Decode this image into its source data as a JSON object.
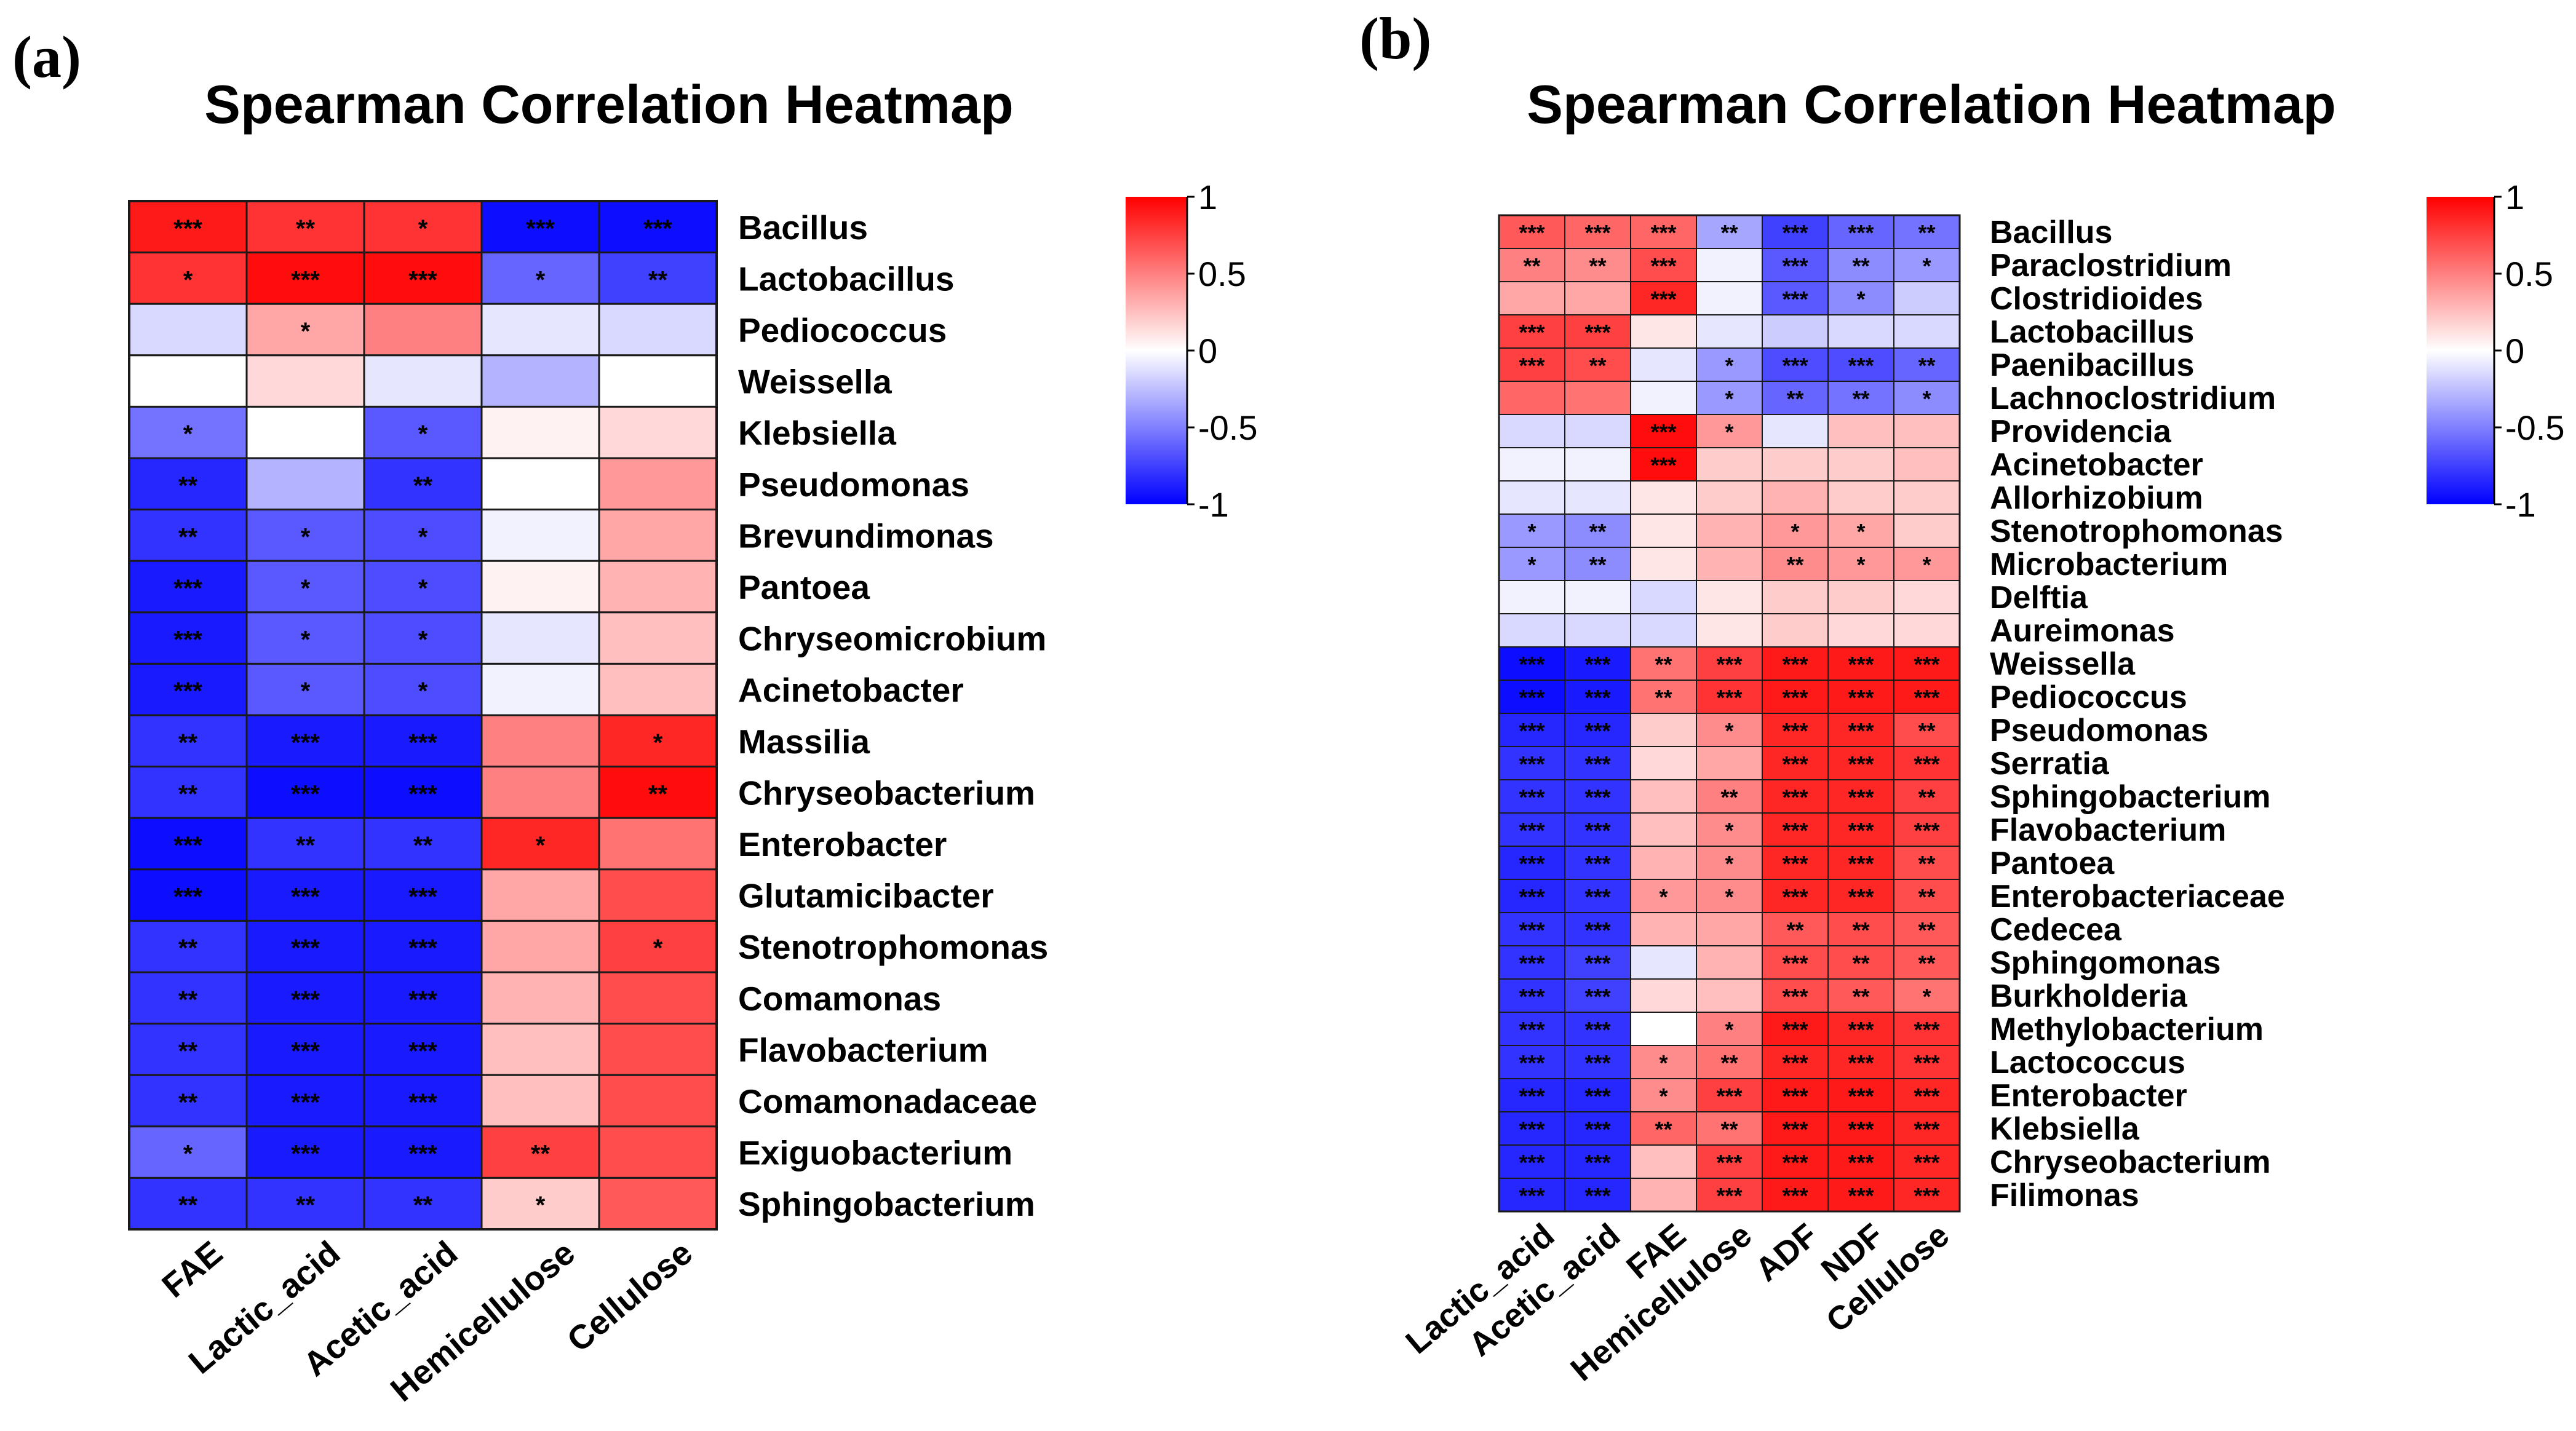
{
  "figure": {
    "panel_a_label": "(a)",
    "panel_b_label": "(b)"
  },
  "colors": {
    "low": "#0000ff",
    "mid": "#ffffff",
    "high": "#ff0000",
    "grid": "#1a1a1a"
  },
  "chart_data": [
    {
      "type": "heatmap",
      "title": "Spearman Correlation Heatmap",
      "columns": [
        "FAE",
        "Lactic_acid",
        "Acetic_acid",
        "Hemicellulose",
        "Cellulose"
      ],
      "rows": [
        "Bacillus",
        "Lactobacillus",
        "Pediococcus",
        "Weissella",
        "Klebsiella",
        "Pseudomonas",
        "Brevundimonas",
        "Pantoea",
        "Chryseomicrobium",
        "Acinetobacter",
        "Massilia",
        "Chryseobacterium",
        "Enterobacter",
        "Glutamicibacter",
        "Stenotrophomonas",
        "Comamonas",
        "Flavobacterium",
        "Comamonadaceae",
        "Exiguobacterium",
        "Sphingobacterium"
      ],
      "values": [
        [
          0.9,
          0.8,
          0.8,
          -0.95,
          -0.95
        ],
        [
          0.8,
          0.95,
          0.95,
          -0.6,
          -0.75
        ],
        [
          -0.15,
          0.35,
          0.5,
          -0.1,
          -0.15
        ],
        [
          0.0,
          0.15,
          -0.1,
          -0.3,
          0.0
        ],
        [
          -0.55,
          0.0,
          -0.65,
          0.05,
          0.15
        ],
        [
          -0.85,
          -0.3,
          -0.8,
          0.0,
          0.4
        ],
        [
          -0.8,
          -0.65,
          -0.7,
          -0.05,
          0.35
        ],
        [
          -0.9,
          -0.65,
          -0.7,
          0.05,
          0.3
        ],
        [
          -0.9,
          -0.65,
          -0.7,
          -0.1,
          0.25
        ],
        [
          -0.9,
          -0.65,
          -0.7,
          -0.05,
          0.25
        ],
        [
          -0.8,
          -0.9,
          -0.9,
          0.5,
          0.85
        ],
        [
          -0.8,
          -0.95,
          -0.95,
          0.5,
          0.95
        ],
        [
          -0.95,
          -0.8,
          -0.8,
          0.85,
          0.55
        ],
        [
          -0.95,
          -0.9,
          -0.9,
          0.35,
          0.7
        ],
        [
          -0.8,
          -0.9,
          -0.9,
          0.35,
          0.75
        ],
        [
          -0.8,
          -0.9,
          -0.9,
          0.3,
          0.7
        ],
        [
          -0.8,
          -0.9,
          -0.9,
          0.25,
          0.7
        ],
        [
          -0.8,
          -0.9,
          -0.9,
          0.25,
          0.7
        ],
        [
          -0.6,
          -0.9,
          -0.9,
          0.75,
          0.7
        ],
        [
          -0.8,
          -0.8,
          -0.8,
          0.2,
          0.65
        ]
      ],
      "significance": [
        [
          "***",
          "**",
          "*",
          "***",
          "***"
        ],
        [
          "*",
          "***",
          "***",
          "*",
          "**"
        ],
        [
          "",
          "*",
          "",
          "",
          ""
        ],
        [
          "",
          "",
          "",
          "",
          ""
        ],
        [
          "*",
          "",
          "*",
          "",
          ""
        ],
        [
          "**",
          "",
          "**",
          "",
          ""
        ],
        [
          "**",
          "*",
          "*",
          "",
          ""
        ],
        [
          "***",
          "*",
          "*",
          "",
          ""
        ],
        [
          "***",
          "*",
          "*",
          "",
          ""
        ],
        [
          "***",
          "*",
          "*",
          "",
          ""
        ],
        [
          "**",
          "***",
          "***",
          "",
          "*"
        ],
        [
          "**",
          "***",
          "***",
          "",
          "**"
        ],
        [
          "***",
          "**",
          "**",
          "*",
          ""
        ],
        [
          "***",
          "***",
          "***",
          "",
          ""
        ],
        [
          "**",
          "***",
          "***",
          "",
          "*"
        ],
        [
          "**",
          "***",
          "***",
          "",
          ""
        ],
        [
          "**",
          "***",
          "***",
          "",
          ""
        ],
        [
          "**",
          "***",
          "***",
          "",
          ""
        ],
        [
          "*",
          "***",
          "***",
          "**",
          ""
        ],
        [
          "**",
          "**",
          "**",
          "*",
          ""
        ]
      ],
      "colorbar": {
        "range": [
          -1,
          1
        ],
        "ticks": [
          "1",
          "0.5",
          "0",
          "-0.5",
          "-1"
        ]
      }
    },
    {
      "type": "heatmap",
      "title": "Spearman Correlation Heatmap",
      "columns": [
        "Lactic_acid",
        "Acetic_acid",
        "FAE",
        "Hemicellulose",
        "ADF",
        "NDF",
        "Cellulose"
      ],
      "rows": [
        "Bacillus",
        "Paraclostridium",
        "Clostridioides",
        "Lactobacillus",
        "Paenibacillus",
        "Lachnoclostridium",
        "Providencia",
        "Acinetobacter",
        "Allorhizobium",
        "Stenotrophomonas",
        "Microbacterium",
        "Delftia",
        "Aureimonas",
        "Weissella",
        "Pediococcus",
        "Pseudomonas",
        "Serratia",
        "Sphingobacterium",
        "Flavobacterium",
        "Pantoea",
        "Enterobacteriaceae",
        "Cedecea",
        "Sphingomonas",
        "Burkholderia",
        "Methylobacterium",
        "Lactococcus",
        "Enterobacter",
        "Klebsiella",
        "Chryseobacterium",
        "Filimonas"
      ],
      "values": [
        [
          0.65,
          0.6,
          0.6,
          -0.35,
          -0.75,
          -0.6,
          -0.55
        ],
        [
          0.5,
          0.45,
          0.7,
          -0.05,
          -0.65,
          -0.45,
          -0.4
        ],
        [
          0.35,
          0.35,
          0.85,
          -0.05,
          -0.65,
          -0.45,
          -0.2
        ],
        [
          0.75,
          0.75,
          0.1,
          -0.1,
          -0.2,
          -0.15,
          -0.15
        ],
        [
          0.75,
          0.7,
          -0.1,
          -0.4,
          -0.7,
          -0.7,
          -0.6
        ],
        [
          0.6,
          0.55,
          -0.05,
          -0.4,
          -0.6,
          -0.55,
          -0.45
        ],
        [
          -0.15,
          -0.15,
          0.95,
          0.4,
          -0.1,
          0.25,
          0.25
        ],
        [
          -0.05,
          -0.05,
          0.95,
          0.2,
          0.2,
          0.2,
          0.25
        ],
        [
          -0.1,
          -0.1,
          0.1,
          0.2,
          0.3,
          0.2,
          0.2
        ],
        [
          -0.4,
          -0.45,
          0.1,
          0.3,
          0.4,
          0.35,
          0.2
        ],
        [
          -0.4,
          -0.45,
          0.1,
          0.3,
          0.45,
          0.4,
          0.4
        ],
        [
          -0.05,
          -0.05,
          -0.15,
          0.1,
          0.2,
          0.2,
          0.15
        ],
        [
          -0.15,
          -0.15,
          -0.15,
          0.1,
          0.2,
          0.15,
          0.15
        ],
        [
          -0.95,
          -0.9,
          0.55,
          0.75,
          0.9,
          0.9,
          0.9
        ],
        [
          -0.95,
          -0.9,
          0.55,
          0.8,
          0.9,
          0.9,
          0.9
        ],
        [
          -0.85,
          -0.85,
          0.2,
          0.45,
          0.85,
          0.85,
          0.7
        ],
        [
          -0.8,
          -0.8,
          0.15,
          0.35,
          0.85,
          0.85,
          0.8
        ],
        [
          -0.8,
          -0.8,
          0.25,
          0.5,
          0.85,
          0.85,
          0.75
        ],
        [
          -0.8,
          -0.8,
          0.25,
          0.45,
          0.85,
          0.85,
          0.75
        ],
        [
          -0.85,
          -0.8,
          0.3,
          0.45,
          0.85,
          0.85,
          0.7
        ],
        [
          -0.85,
          -0.8,
          0.4,
          0.45,
          0.85,
          0.85,
          0.7
        ],
        [
          -0.8,
          -0.8,
          0.3,
          0.35,
          0.65,
          0.7,
          0.65
        ],
        [
          -0.8,
          -0.75,
          -0.1,
          0.3,
          0.7,
          0.7,
          0.65
        ],
        [
          -0.8,
          -0.75,
          0.15,
          0.25,
          0.7,
          0.65,
          0.55
        ],
        [
          -0.8,
          -0.8,
          0.0,
          0.5,
          0.9,
          0.85,
          0.8
        ],
        [
          -0.8,
          -0.8,
          0.45,
          0.55,
          0.85,
          0.85,
          0.8
        ],
        [
          -0.85,
          -0.85,
          0.45,
          0.75,
          0.9,
          0.9,
          0.85
        ],
        [
          -0.85,
          -0.85,
          0.6,
          0.55,
          0.9,
          0.9,
          0.85
        ],
        [
          -0.85,
          -0.85,
          0.25,
          0.75,
          0.9,
          0.9,
          0.85
        ],
        [
          -0.85,
          -0.85,
          0.3,
          0.75,
          0.9,
          0.9,
          0.85
        ]
      ],
      "significance": [
        [
          "***",
          "***",
          "***",
          "**",
          "***",
          "***",
          "**"
        ],
        [
          "**",
          "**",
          "***",
          "",
          "***",
          "**",
          "*"
        ],
        [
          "",
          "",
          "***",
          "",
          "***",
          "*",
          ""
        ],
        [
          "***",
          "***",
          "",
          "",
          "",
          "",
          ""
        ],
        [
          "***",
          "**",
          "",
          "*",
          "***",
          "***",
          "**"
        ],
        [
          "",
          "",
          "",
          "*",
          "**",
          "**",
          "*"
        ],
        [
          "",
          "",
          "***",
          "*",
          "",
          "",
          ""
        ],
        [
          "",
          "",
          "***",
          "",
          "",
          "",
          ""
        ],
        [
          "",
          "",
          "",
          "",
          "",
          "",
          ""
        ],
        [
          "*",
          "**",
          "",
          "",
          "*",
          "*",
          ""
        ],
        [
          "*",
          "**",
          "",
          "",
          "**",
          "*",
          "*"
        ],
        [
          "",
          "",
          "",
          "",
          "",
          "",
          ""
        ],
        [
          "",
          "",
          "",
          "",
          "",
          "",
          ""
        ],
        [
          "***",
          "***",
          "**",
          "***",
          "***",
          "***",
          "***"
        ],
        [
          "***",
          "***",
          "**",
          "***",
          "***",
          "***",
          "***"
        ],
        [
          "***",
          "***",
          "",
          "*",
          "***",
          "***",
          "**"
        ],
        [
          "***",
          "***",
          "",
          "",
          "***",
          "***",
          "***"
        ],
        [
          "***",
          "***",
          "",
          "**",
          "***",
          "***",
          "**"
        ],
        [
          "***",
          "***",
          "",
          "*",
          "***",
          "***",
          "***"
        ],
        [
          "***",
          "***",
          "",
          "*",
          "***",
          "***",
          "**"
        ],
        [
          "***",
          "***",
          "*",
          "*",
          "***",
          "***",
          "**"
        ],
        [
          "***",
          "***",
          "",
          "",
          "**",
          "**",
          "**"
        ],
        [
          "***",
          "***",
          "",
          "",
          "***",
          "**",
          "**"
        ],
        [
          "***",
          "***",
          "",
          "",
          "***",
          "**",
          "*"
        ],
        [
          "***",
          "***",
          "",
          "*",
          "***",
          "***",
          "***"
        ],
        [
          "***",
          "***",
          "*",
          "**",
          "***",
          "***",
          "***"
        ],
        [
          "***",
          "***",
          "*",
          "***",
          "***",
          "***",
          "***"
        ],
        [
          "***",
          "***",
          "**",
          "**",
          "***",
          "***",
          "***"
        ],
        [
          "***",
          "***",
          "",
          "***",
          "***",
          "***",
          "***"
        ],
        [
          "***",
          "***",
          "",
          "***",
          "***",
          "***",
          "***"
        ]
      ],
      "colorbar": {
        "range": [
          -1,
          1
        ],
        "ticks": [
          "1",
          "0.5",
          "0",
          "-0.5",
          "-1"
        ]
      }
    }
  ]
}
